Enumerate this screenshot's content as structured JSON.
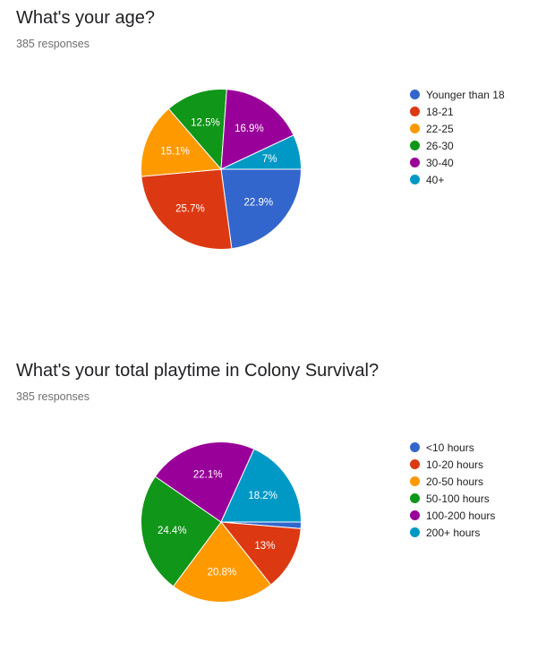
{
  "chart_data": [
    {
      "type": "pie",
      "title": "What's your age?",
      "subtitle": "385 responses",
      "categories": [
        "Younger than 18",
        "18-21",
        "22-25",
        "26-30",
        "30-40",
        "40+"
      ],
      "values": [
        22.9,
        25.7,
        15.1,
        12.5,
        16.9,
        7
      ],
      "labels": [
        "22.9%",
        "25.7%",
        "15.1%",
        "12.5%",
        "16.9%",
        "7%"
      ],
      "colors": [
        "#3366cc",
        "#dc3912",
        "#ff9900",
        "#109618",
        "#990099",
        "#0099c6"
      ],
      "legend_position": "right"
    },
    {
      "type": "pie",
      "title": "What's your total playtime in Colony Survival?",
      "subtitle": "385 responses",
      "categories": [
        "<10 hours",
        "10-20 hours",
        "20-50 hours",
        "50-100 hours",
        "100-200 hours",
        "200+ hours"
      ],
      "values": [
        1.3,
        13,
        20.8,
        24.4,
        22.1,
        18.2
      ],
      "labels": [
        "",
        "13%",
        "20.8%",
        "24.4%",
        "22.1%",
        "18.2%"
      ],
      "colors": [
        "#3366cc",
        "#dc3912",
        "#ff9900",
        "#109618",
        "#990099",
        "#0099c6"
      ],
      "legend_position": "right"
    }
  ]
}
